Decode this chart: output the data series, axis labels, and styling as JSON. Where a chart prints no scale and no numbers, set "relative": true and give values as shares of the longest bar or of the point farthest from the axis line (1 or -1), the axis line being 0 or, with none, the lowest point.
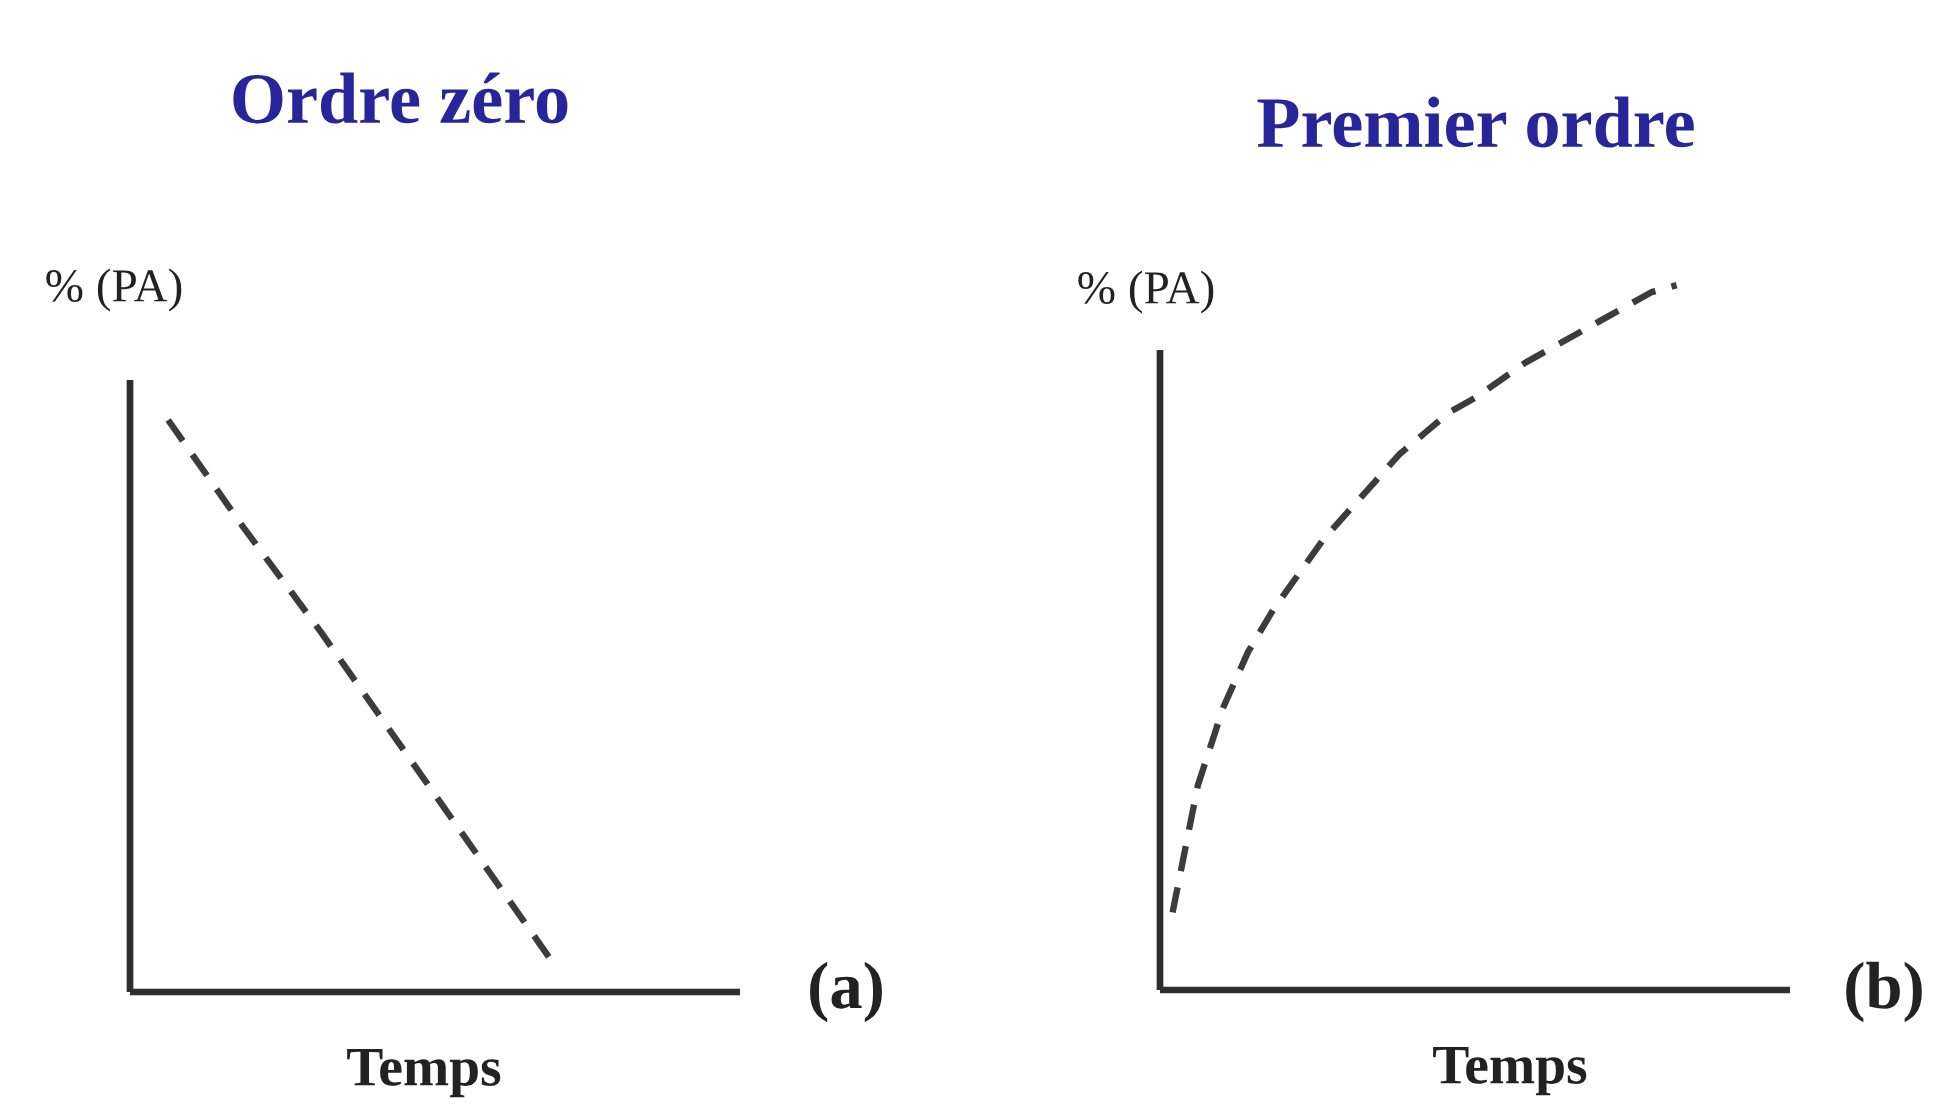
{
  "chart_data": [
    {
      "type": "line",
      "title": "Ordre zéro",
      "xlabel": "Temps",
      "ylabel": "% (PA)",
      "annotations": [
        "(a)"
      ],
      "categories": [
        null,
        null,
        null,
        null,
        null,
        null,
        null,
        null
      ],
      "series": [
        {
          "color": "#3c3c3c",
          "values": [
            1.0,
            0.81,
            0.63,
            0.44,
            0.25,
            0.06,
            null,
            null
          ]
        }
      ],
      "relative": true,
      "line_style": "dashed"
    },
    {
      "type": "line",
      "title": "Premier ordre",
      "xlabel": "Temps",
      "ylabel": "% (PA)",
      "annotations": [
        "(b)"
      ],
      "categories": [
        null,
        null,
        null,
        null,
        null,
        null,
        null,
        null,
        null,
        null,
        null,
        null,
        null,
        null,
        null,
        null,
        null,
        null,
        null,
        null,
        null,
        null,
        null,
        null,
        null
      ],
      "series": [
        {
          "color": "#3c3c3c",
          "values": [
            0.11,
            0.29,
            0.4,
            0.48,
            0.54,
            0.59,
            0.64,
            0.68,
            0.72,
            0.76,
            0.79,
            0.82,
            0.84,
            0.865,
            0.89,
            0.91,
            0.93,
            0.95,
            0.97,
            0.99,
            1.0,
            null,
            null,
            null,
            null
          ]
        }
      ],
      "relative": true,
      "line_style": "dashed"
    }
  ]
}
